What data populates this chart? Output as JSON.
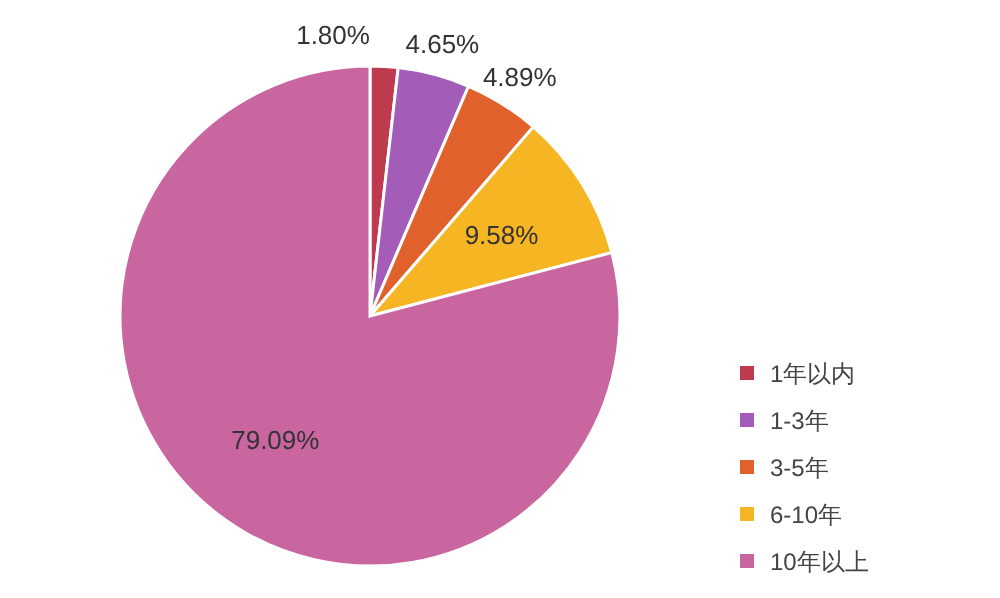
{
  "chart_data": {
    "type": "pie",
    "categories": [
      "1年以内",
      "1-3年",
      "3-5年",
      "6-10年",
      "10年以上"
    ],
    "values": [
      1.8,
      4.65,
      4.89,
      9.58,
      79.09
    ],
    "colors": [
      "#be3a4e",
      "#a35cb8",
      "#e0612c",
      "#f6b623",
      "#c9659f"
    ],
    "value_labels": [
      "1.80%",
      "4.65%",
      "4.89%",
      "9.58%",
      "79.09%"
    ],
    "legend": "right"
  }
}
